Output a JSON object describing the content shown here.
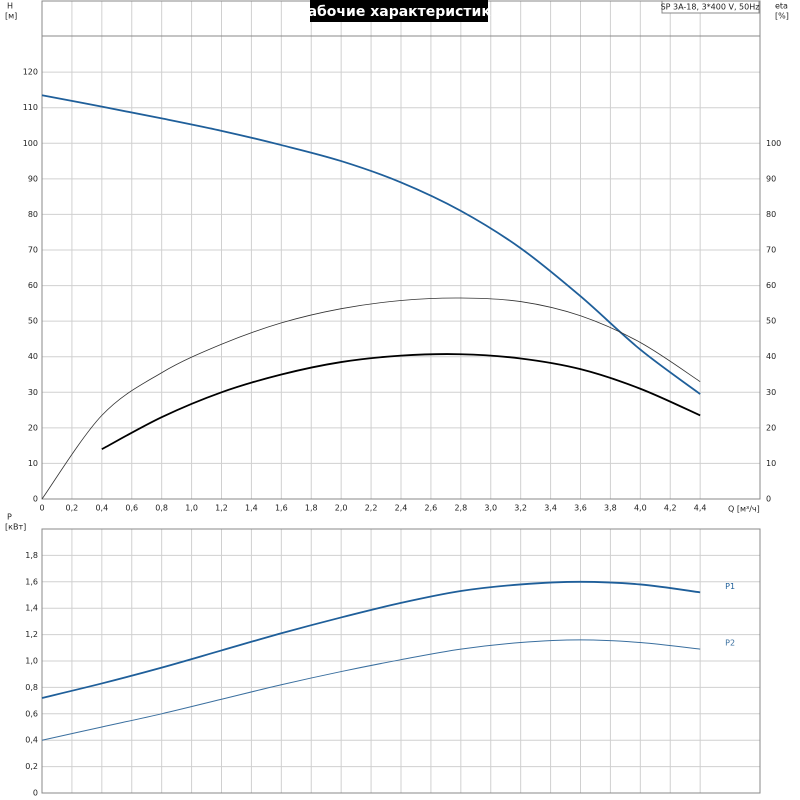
{
  "chart_data": [
    {
      "type": "line",
      "title": "Рабочие характеристики",
      "subtitle": "SP 3A-18, 3*400 V, 50Hz",
      "y_label": "H",
      "y_unit": "[м]",
      "y2_label": "eta",
      "y2_unit": "[%]",
      "x_label": "Q [м³/ч]",
      "x": [
        0,
        0.4,
        0.8,
        1.2,
        1.6,
        2.0,
        2.4,
        2.8,
        3.2,
        3.6,
        4.0,
        4.4
      ],
      "xlim": [
        0,
        4.8
      ],
      "xticks": [
        0,
        {
          "value": 0.2,
          "label": "0,2"
        },
        {
          "value": 0.4,
          "label": "0,4"
        },
        {
          "value": 0.6,
          "label": "0,6"
        },
        {
          "value": 0.8,
          "label": "0,8"
        },
        {
          "value": 1.0,
          "label": "1,0"
        },
        {
          "value": 1.2,
          "label": "1,2"
        },
        {
          "value": 1.4,
          "label": "1,4"
        },
        {
          "value": 1.6,
          "label": "1,6"
        },
        {
          "value": 1.8,
          "label": "1,8"
        },
        {
          "value": 2.0,
          "label": "2,0"
        },
        {
          "value": 2.2,
          "label": "2,2"
        },
        {
          "value": 2.4,
          "label": "2,4"
        },
        {
          "value": 2.6,
          "label": "2,6"
        },
        {
          "value": 2.8,
          "label": "2,8"
        },
        {
          "value": 3.0,
          "label": "3,0"
        },
        {
          "value": 3.2,
          "label": "3,2"
        },
        {
          "value": 3.4,
          "label": "3,4"
        },
        {
          "value": 3.6,
          "label": "3,6"
        },
        {
          "value": 3.8,
          "label": "3,8"
        },
        {
          "value": 4.0,
          "label": "4,0"
        },
        {
          "value": 4.2,
          "label": "4,2"
        },
        {
          "value": 4.4,
          "label": "4,4"
        }
      ],
      "ylim": [
        0,
        140
      ],
      "yticks": [
        0,
        10,
        20,
        30,
        40,
        50,
        60,
        70,
        80,
        90,
        100,
        110,
        120
      ],
      "y2lim": [
        0,
        140
      ],
      "y2ticks": [
        0,
        10,
        20,
        30,
        40,
        50,
        60,
        70,
        80,
        90,
        100
      ],
      "grid": true,
      "series": [
        {
          "color": "#1f5f9a",
          "values": [
            113.5,
            110.3,
            107,
            103.5,
            99.5,
            95,
            89,
            81,
            70.5,
            57,
            42,
            29.5
          ]
        },
        {
          "color": "#333333",
          "axis": "y2",
          "values": [
            0,
            23.5,
            35.5,
            43.5,
            49.5,
            53.5,
            55.8,
            56.5,
            55.5,
            51.5,
            44,
            33
          ]
        },
        {
          "color": "#000000",
          "axis": "y2",
          "values": [
            null,
            14,
            23,
            30,
            35,
            38.5,
            40.3,
            40.7,
            39.5,
            36.5,
            31,
            23.5
          ]
        }
      ]
    },
    {
      "type": "line",
      "y_label": "P",
      "y_unit": "[кВт]",
      "x": [
        0,
        0.4,
        0.8,
        1.2,
        1.6,
        2.0,
        2.4,
        2.8,
        3.2,
        3.6,
        4.0,
        4.4
      ],
      "xlim": [
        0,
        4.8
      ],
      "ylim": [
        0,
        2
      ],
      "yticks": [
        0,
        {
          "value": 0.2,
          "label": "0,2"
        },
        {
          "value": 0.4,
          "label": "0,4"
        },
        {
          "value": 0.6,
          "label": "0,6"
        },
        {
          "value": 0.8,
          "label": "0,8"
        },
        {
          "value": 1.0,
          "label": "1,0"
        },
        {
          "value": 1.2,
          "label": "1,2"
        },
        {
          "value": 1.4,
          "label": "1,4"
        },
        {
          "value": 1.6,
          "label": "1,6"
        },
        {
          "value": 1.8,
          "label": "1,8"
        }
      ],
      "grid": true,
      "series": [
        {
          "name": "P1",
          "color": "#1f5f9a",
          "values": [
            0.72,
            0.83,
            0.95,
            1.08,
            1.21,
            1.33,
            1.44,
            1.53,
            1.58,
            1.6,
            1.58,
            1.52
          ]
        },
        {
          "name": "P2",
          "color": "#3a6f9f",
          "values": [
            0.4,
            0.5,
            0.6,
            0.71,
            0.82,
            0.92,
            1.01,
            1.09,
            1.14,
            1.16,
            1.14,
            1.09
          ]
        }
      ]
    }
  ]
}
